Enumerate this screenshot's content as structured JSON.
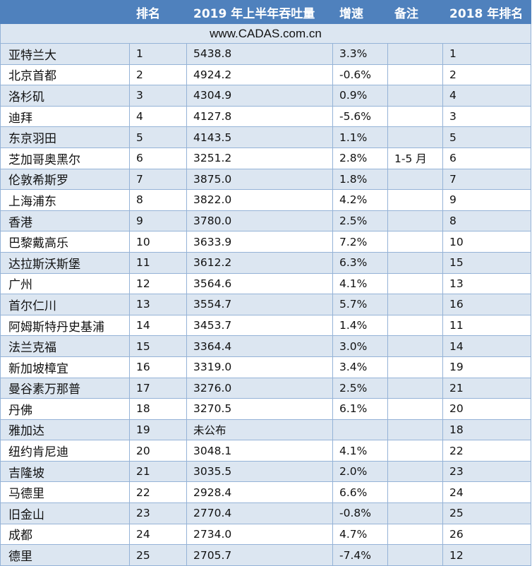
{
  "headers": {
    "city": "",
    "rank": "排名",
    "throughput": "2019 年上半年吞吐量",
    "growth": "增速",
    "note": "备注",
    "rank2018": "2018 年排名"
  },
  "website": "www.CADAS.com.cn",
  "rows": [
    {
      "city": "亚特兰大",
      "rank": "1",
      "throughput": "5438.8",
      "growth": "3.3%",
      "note": "",
      "rank2018": "1"
    },
    {
      "city": "北京首都",
      "rank": "2",
      "throughput": "4924.2",
      "growth": "-0.6%",
      "note": "",
      "rank2018": "2"
    },
    {
      "city": "洛杉矶",
      "rank": "3",
      "throughput": "4304.9",
      "growth": "0.9%",
      "note": "",
      "rank2018": "4"
    },
    {
      "city": "迪拜",
      "rank": "4",
      "throughput": "4127.8",
      "growth": "-5.6%",
      "note": "",
      "rank2018": "3"
    },
    {
      "city": "东京羽田",
      "rank": "5",
      "throughput": "4143.5",
      "growth": "1.1%",
      "note": "",
      "rank2018": "5"
    },
    {
      "city": "芝加哥奥黑尔",
      "rank": "6",
      "throughput": "3251.2",
      "growth": "2.8%",
      "note": "1-5 月",
      "rank2018": "6"
    },
    {
      "city": "伦敦希斯罗",
      "rank": "7",
      "throughput": "3875.0",
      "growth": "1.8%",
      "note": "",
      "rank2018": "7"
    },
    {
      "city": "上海浦东",
      "rank": "8",
      "throughput": "3822.0",
      "growth": "4.2%",
      "note": "",
      "rank2018": "9"
    },
    {
      "city": "香港",
      "rank": "9",
      "throughput": "3780.0",
      "growth": "2.5%",
      "note": "",
      "rank2018": "8"
    },
    {
      "city": "巴黎戴高乐",
      "rank": "10",
      "throughput": "3633.9",
      "growth": "7.2%",
      "note": "",
      "rank2018": "10"
    },
    {
      "city": "达拉斯沃斯堡",
      "rank": "11",
      "throughput": "3612.2",
      "growth": "6.3%",
      "note": "",
      "rank2018": "15"
    },
    {
      "city": "广州",
      "rank": "12",
      "throughput": "3564.6",
      "growth": "4.1%",
      "note": "",
      "rank2018": "13"
    },
    {
      "city": "首尔仁川",
      "rank": "13",
      "throughput": "3554.7",
      "growth": "5.7%",
      "note": "",
      "rank2018": "16"
    },
    {
      "city": "阿姆斯特丹史基浦",
      "rank": "14",
      "throughput": "3453.7",
      "growth": "1.4%",
      "note": "",
      "rank2018": "11"
    },
    {
      "city": "法兰克福",
      "rank": "15",
      "throughput": "3364.4",
      "growth": "3.0%",
      "note": "",
      "rank2018": "14"
    },
    {
      "city": "新加坡樟宜",
      "rank": "16",
      "throughput": "3319.0",
      "growth": "3.4%",
      "note": "",
      "rank2018": "19"
    },
    {
      "city": "曼谷素万那普",
      "rank": "17",
      "throughput": "3276.0",
      "growth": "2.5%",
      "note": "",
      "rank2018": "21"
    },
    {
      "city": "丹佛",
      "rank": "18",
      "throughput": "3270.5",
      "growth": "6.1%",
      "note": "",
      "rank2018": "20"
    },
    {
      "city": "雅加达",
      "rank": "19",
      "throughput": "未公布",
      "growth": "",
      "note": "",
      "rank2018": "18"
    },
    {
      "city": "纽约肯尼迪",
      "rank": "20",
      "throughput": "3048.1",
      "growth": "4.1%",
      "note": "",
      "rank2018": "22"
    },
    {
      "city": "吉隆坡",
      "rank": "21",
      "throughput": "3035.5",
      "growth": "2.0%",
      "note": "",
      "rank2018": "23"
    },
    {
      "city": "马德里",
      "rank": "22",
      "throughput": "2928.4",
      "growth": "6.6%",
      "note": "",
      "rank2018": "24"
    },
    {
      "city": "旧金山",
      "rank": "23",
      "throughput": "2770.4",
      "growth": "-0.8%",
      "note": "",
      "rank2018": "25"
    },
    {
      "city": "成都",
      "rank": "24",
      "throughput": "2734.0",
      "growth": "4.7%",
      "note": "",
      "rank2018": "26"
    },
    {
      "city": "德里",
      "rank": "25",
      "throughput": "2705.7",
      "growth": "-7.4%",
      "note": "",
      "rank2018": "12"
    }
  ]
}
